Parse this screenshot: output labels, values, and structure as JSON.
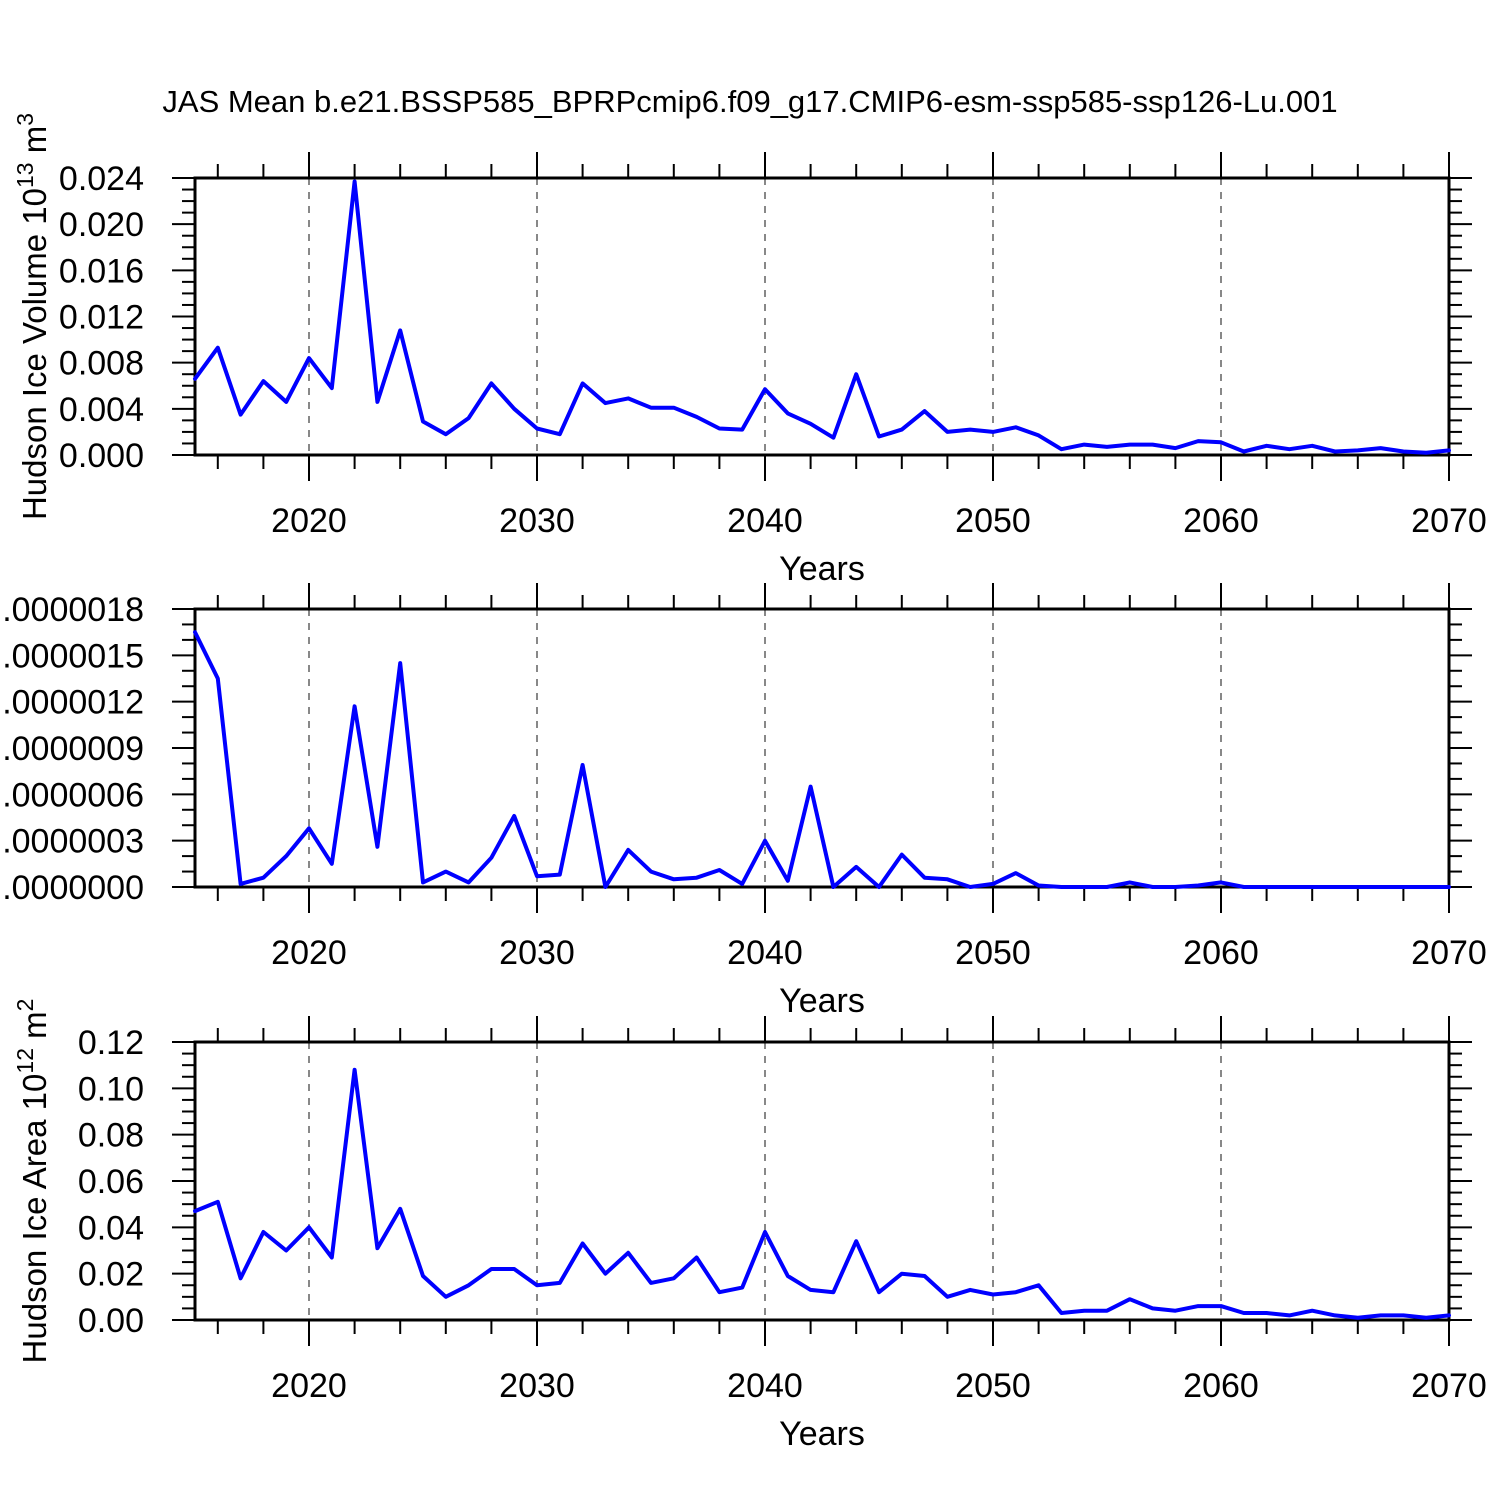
{
  "title": "JAS Mean b.e21.BSSP585_BPRPcmip6.f09_g17.CMIP6-esm-ssp585-ssp126-Lu.001",
  "colors": {
    "line": "#0000ff",
    "grid": "#888888",
    "frame": "#000000",
    "text": "#000000"
  },
  "chart_data": [
    {
      "id": "ice-volume",
      "type": "line",
      "ylabel_segments": [
        {
          "t": "Hudson Ice Volume 10",
          "sup": false
        },
        {
          "t": "13",
          "sup": true
        },
        {
          "t": " m",
          "sup": false
        },
        {
          "t": "3",
          "sup": true
        }
      ],
      "xlabel": "Years",
      "ytick_labels": [
        "0.000",
        "0.004",
        "0.008",
        "0.012",
        "0.016",
        "0.020",
        "0.024"
      ],
      "xtick_years": [
        2020,
        2030,
        2040,
        2050,
        2060,
        2070
      ],
      "xtick_labels": [
        "2020",
        "2030",
        "2040",
        "2050",
        "2060",
        "2070"
      ],
      "ylim": [
        0,
        0.024
      ],
      "ymajor": 0.004,
      "yminor": 0.001,
      "xlim": [
        2015,
        2070
      ],
      "xminor_step": 2,
      "grid_x": [
        2020,
        2030,
        2040,
        2050,
        2060
      ],
      "grid_on": true,
      "legend": "none",
      "x": [
        2015,
        2016,
        2017,
        2018,
        2019,
        2020,
        2021,
        2022,
        2023,
        2024,
        2025,
        2026,
        2027,
        2028,
        2029,
        2030,
        2031,
        2032,
        2033,
        2034,
        2035,
        2036,
        2037,
        2038,
        2039,
        2040,
        2041,
        2042,
        2043,
        2044,
        2045,
        2046,
        2047,
        2048,
        2049,
        2050,
        2051,
        2052,
        2053,
        2054,
        2055,
        2056,
        2057,
        2058,
        2059,
        2060,
        2061,
        2062,
        2063,
        2064,
        2065,
        2066,
        2067,
        2068,
        2069,
        2070
      ],
      "values": [
        0.0066,
        0.0093,
        0.0035,
        0.0064,
        0.0046,
        0.0084,
        0.0058,
        0.0237,
        0.0046,
        0.0108,
        0.0029,
        0.0018,
        0.0032,
        0.0062,
        0.004,
        0.0023,
        0.0018,
        0.0062,
        0.0045,
        0.0049,
        0.0041,
        0.0041,
        0.0033,
        0.0023,
        0.0022,
        0.0057,
        0.0036,
        0.0027,
        0.0015,
        0.007,
        0.0016,
        0.0022,
        0.0038,
        0.002,
        0.0022,
        0.002,
        0.0024,
        0.0017,
        0.0005,
        0.0009,
        0.0007,
        0.0009,
        0.0009,
        0.0006,
        0.0012,
        0.0011,
        0.0003,
        0.0008,
        0.0005,
        0.0008,
        0.0003,
        0.0004,
        0.0006,
        0.0003,
        0.0002,
        0.0004
      ]
    },
    {
      "id": "middle",
      "type": "line",
      "ylabel_segments": null,
      "xlabel": "Years",
      "ytick_labels": [
        ".0000000",
        ".0000003",
        ".0000006",
        ".0000009",
        ".0000012",
        ".0000015",
        ".0000018"
      ],
      "xtick_years": [
        2020,
        2030,
        2040,
        2050,
        2060,
        2070
      ],
      "xtick_labels": [
        "2020",
        "2030",
        "2040",
        "2050",
        "2060",
        "2070"
      ],
      "ylim": [
        0,
        1.8e-06
      ],
      "ymajor": 3e-07,
      "yminor": 1e-07,
      "xlim": [
        2015,
        2070
      ],
      "xminor_step": 2,
      "grid_x": [
        2020,
        2030,
        2040,
        2050,
        2060
      ],
      "grid_on": true,
      "legend": "none",
      "x": [
        2015,
        2016,
        2017,
        2018,
        2019,
        2020,
        2021,
        2022,
        2023,
        2024,
        2025,
        2026,
        2027,
        2028,
        2029,
        2030,
        2031,
        2032,
        2033,
        2034,
        2035,
        2036,
        2037,
        2038,
        2039,
        2040,
        2041,
        2042,
        2043,
        2044,
        2045,
        2046,
        2047,
        2048,
        2049,
        2050,
        2051,
        2052,
        2053,
        2054,
        2055,
        2056,
        2057,
        2058,
        2059,
        2060,
        2061,
        2062,
        2063,
        2064,
        2065,
        2066,
        2067,
        2068,
        2069,
        2070
      ],
      "values": [
        1.65e-06,
        1.35e-06,
        2e-08,
        6e-08,
        2e-07,
        3.8e-07,
        1.5e-07,
        1.17e-06,
        2.6e-07,
        1.45e-06,
        3e-08,
        1e-07,
        3e-08,
        1.9e-07,
        4.6e-07,
        7e-08,
        8e-08,
        7.9e-07,
        0.0,
        2.4e-07,
        1e-07,
        5e-08,
        6e-08,
        1.1e-07,
        2e-08,
        3e-07,
        4e-08,
        6.5e-07,
        0.0,
        1.3e-07,
        0.0,
        2.1e-07,
        6e-08,
        5e-08,
        0.0,
        2e-08,
        9e-08,
        1e-08,
        0.0,
        0.0,
        0.0,
        3e-08,
        0.0,
        0.0,
        1e-08,
        3e-08,
        0.0,
        0.0,
        0.0,
        0.0,
        0.0,
        0.0,
        0.0,
        0.0,
        0.0,
        0.0
      ]
    },
    {
      "id": "ice-area",
      "type": "line",
      "ylabel_segments": [
        {
          "t": "Hudson Ice Area 10",
          "sup": false
        },
        {
          "t": "12",
          "sup": true
        },
        {
          "t": " m",
          "sup": false
        },
        {
          "t": "2",
          "sup": true
        }
      ],
      "xlabel": "Years",
      "ytick_labels": [
        "0.00",
        "0.02",
        "0.04",
        "0.06",
        "0.08",
        "0.10",
        "0.12"
      ],
      "xtick_years": [
        2020,
        2030,
        2040,
        2050,
        2060,
        2070
      ],
      "xtick_labels": [
        "2020",
        "2030",
        "2040",
        "2050",
        "2060",
        "2070"
      ],
      "ylim": [
        0,
        0.12
      ],
      "ymajor": 0.02,
      "yminor": 0.005,
      "xlim": [
        2015,
        2070
      ],
      "xminor_step": 2,
      "grid_x": [
        2020,
        2030,
        2040,
        2050,
        2060
      ],
      "grid_on": true,
      "legend": "none",
      "x": [
        2015,
        2016,
        2017,
        2018,
        2019,
        2020,
        2021,
        2022,
        2023,
        2024,
        2025,
        2026,
        2027,
        2028,
        2029,
        2030,
        2031,
        2032,
        2033,
        2034,
        2035,
        2036,
        2037,
        2038,
        2039,
        2040,
        2041,
        2042,
        2043,
        2044,
        2045,
        2046,
        2047,
        2048,
        2049,
        2050,
        2051,
        2052,
        2053,
        2054,
        2055,
        2056,
        2057,
        2058,
        2059,
        2060,
        2061,
        2062,
        2063,
        2064,
        2065,
        2066,
        2067,
        2068,
        2069,
        2070
      ],
      "values": [
        0.047,
        0.051,
        0.018,
        0.038,
        0.03,
        0.04,
        0.027,
        0.108,
        0.031,
        0.048,
        0.019,
        0.01,
        0.015,
        0.022,
        0.022,
        0.015,
        0.016,
        0.033,
        0.02,
        0.029,
        0.016,
        0.018,
        0.027,
        0.012,
        0.014,
        0.038,
        0.019,
        0.013,
        0.012,
        0.034,
        0.012,
        0.02,
        0.019,
        0.01,
        0.013,
        0.011,
        0.012,
        0.015,
        0.003,
        0.004,
        0.004,
        0.009,
        0.005,
        0.004,
        0.006,
        0.006,
        0.003,
        0.003,
        0.002,
        0.004,
        0.002,
        0.001,
        0.002,
        0.002,
        0.001,
        0.002
      ]
    }
  ]
}
